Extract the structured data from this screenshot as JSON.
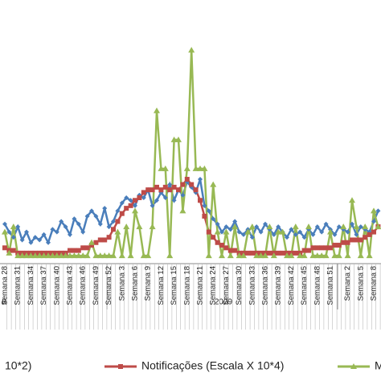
{
  "chart_data": {
    "type": "line",
    "categories": [
      "Semana 28",
      null,
      null,
      "Semana 31",
      null,
      null,
      "Semana 34",
      null,
      null,
      "Semana 37",
      null,
      null,
      "Semana 40",
      null,
      null,
      "Semana 43",
      null,
      null,
      "Semana 46",
      null,
      null,
      "Semana 49",
      null,
      null,
      "Semana 52",
      null,
      null,
      "Semana 3",
      null,
      null,
      "Semana 6",
      null,
      null,
      "Semana 9",
      null,
      null,
      "Semana 12",
      null,
      null,
      "Semana 15",
      null,
      null,
      "Semana 18",
      null,
      null,
      "Semana 21",
      null,
      null,
      "Semana 24",
      null,
      null,
      "Semana 27",
      null,
      null,
      "Semana 30",
      null,
      null,
      "Semana 33",
      null,
      null,
      "Semana 36",
      null,
      null,
      "Semana 39",
      null,
      null,
      "Semana 42",
      null,
      null,
      "Semana 45",
      null,
      null,
      "Semana 48",
      null,
      null,
      "Semana 51",
      null,
      null,
      null,
      "Semana 2",
      null,
      null,
      "Semana 5",
      null,
      null,
      "Semana 8",
      null
    ],
    "year_labels": [
      "8",
      "2009"
    ],
    "ylim": [
      0,
      100
    ],
    "series": [
      {
        "name": "10*2)",
        "color": "#4a7ebb",
        "marker": "diamond",
        "values": [
          15,
          12,
          10,
          14,
          9,
          12,
          8,
          10,
          9,
          11,
          8,
          13,
          12,
          16,
          14,
          11,
          17,
          15,
          12,
          18,
          20,
          18,
          15,
          21,
          14,
          16,
          20,
          23,
          25,
          24,
          22,
          26,
          25,
          28,
          22,
          24,
          27,
          25,
          30,
          24,
          28,
          26,
          31,
          29,
          27,
          32,
          22,
          20,
          17,
          15,
          12,
          14,
          13,
          16,
          12,
          11,
          13,
          10,
          14,
          12,
          15,
          13,
          11,
          14,
          12,
          10,
          13,
          11,
          12,
          10,
          13,
          11,
          14,
          12,
          15,
          13,
          11,
          14,
          13,
          12,
          15,
          11,
          14,
          13,
          12,
          16,
          20
        ]
      },
      {
        "name": "Notificações (Escala X 10*4)",
        "color": "#be4b48",
        "marker": "square",
        "values": [
          6,
          5,
          5,
          4,
          4,
          4,
          4,
          4,
          4,
          4,
          4,
          4,
          4,
          4,
          4,
          5,
          5,
          5,
          6,
          6,
          7,
          8,
          9,
          9,
          10,
          13,
          16,
          19,
          21,
          22,
          24,
          25,
          27,
          28,
          28,
          29,
          28,
          29,
          28,
          29,
          28,
          30,
          32,
          30,
          28,
          24,
          18,
          12,
          10,
          8,
          7,
          6,
          5,
          5,
          4,
          4,
          4,
          4,
          4,
          4,
          4,
          4,
          4,
          4,
          4,
          4,
          4,
          4,
          4,
          5,
          5,
          6,
          6,
          6,
          6,
          6,
          7,
          7,
          8,
          8,
          9,
          9,
          9,
          10,
          11,
          12,
          14
        ]
      },
      {
        "name": "M",
        "color": "#98b954",
        "marker": "triangle",
        "values": [
          12,
          4,
          14,
          3,
          3,
          3,
          3,
          3,
          3,
          3,
          3,
          3,
          3,
          3,
          3,
          3,
          3,
          3,
          3,
          3,
          8,
          3,
          3,
          3,
          3,
          3,
          12,
          3,
          14,
          3,
          20,
          14,
          3,
          3,
          14,
          58,
          36,
          36,
          3,
          47,
          47,
          20,
          36,
          81,
          36,
          36,
          36,
          3,
          30,
          12,
          3,
          12,
          3,
          14,
          3,
          3,
          12,
          14,
          3,
          3,
          3,
          14,
          3,
          12,
          12,
          3,
          3,
          14,
          3,
          3,
          14,
          3,
          3,
          3,
          3,
          12,
          3,
          3,
          14,
          3,
          24,
          14,
          3,
          14,
          3,
          20,
          14
        ]
      }
    ]
  }
}
